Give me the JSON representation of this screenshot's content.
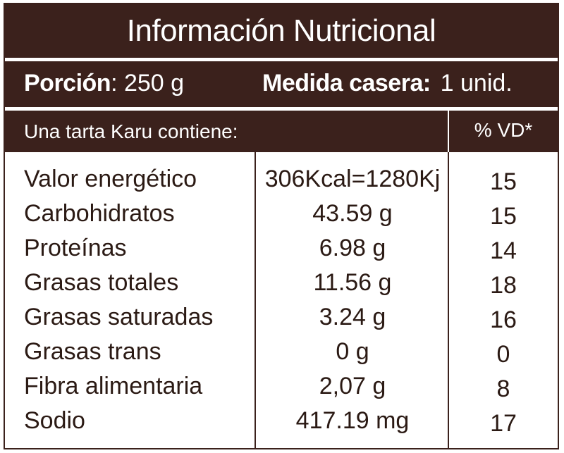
{
  "title": "Información Nutricional",
  "portion": {
    "label": "Porción",
    "value": "250 g",
    "household_label": "Medida casera:",
    "household_value": "1 unid."
  },
  "contains": {
    "label": "Una tarta Karu contiene:",
    "vd_header": "% VD*"
  },
  "nutrients": [
    {
      "name": "Valor energético",
      "amount": "306Kcal=1280Kj",
      "vd": "15"
    },
    {
      "name": "Carbohidratos",
      "amount": "43.59 g",
      "vd": "15"
    },
    {
      "name": "Proteínas",
      "amount": "6.98 g",
      "vd": "14"
    },
    {
      "name": "Grasas totales",
      "amount": "11.56 g",
      "vd": "18"
    },
    {
      "name": "Grasas saturadas",
      "amount": "3.24 g",
      "vd": "16"
    },
    {
      "name": "Grasas trans",
      "amount": "0 g",
      "vd": "0"
    },
    {
      "name": "Fibra alimentaria",
      "amount": "2,07 g",
      "vd": "8"
    },
    {
      "name": "Sodio",
      "amount": "417.19 mg",
      "vd": "17"
    }
  ],
  "colors": {
    "brand_brown": "#3b211c",
    "text": "#2b1a14",
    "background": "#ffffff"
  }
}
